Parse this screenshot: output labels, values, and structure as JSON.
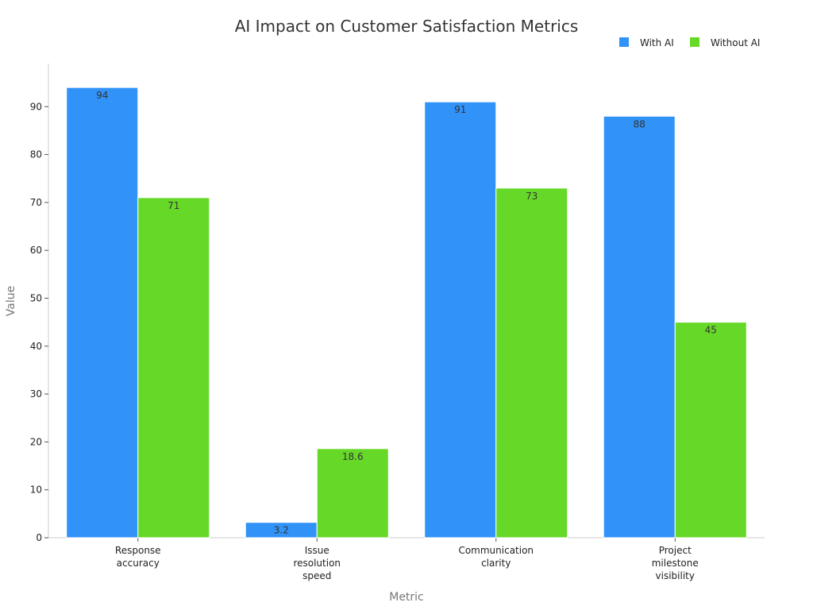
{
  "chart_data": {
    "type": "bar",
    "title": "AI Impact on Customer Satisfaction Metrics",
    "xlabel": "Metric",
    "ylabel": "Value",
    "ylim": [
      0,
      99
    ],
    "yticks": [
      0,
      10,
      20,
      30,
      40,
      50,
      60,
      70,
      80,
      90
    ],
    "grid": false,
    "legend_position": "top-right",
    "categories": [
      [
        "Response",
        "accuracy"
      ],
      [
        "Issue",
        "resolution",
        "speed"
      ],
      [
        "Communication",
        "clarity"
      ],
      [
        "Project",
        "milestone",
        "visibility"
      ]
    ],
    "series": [
      {
        "name": "With AI",
        "color": "#3192f7",
        "values": [
          94,
          3.2,
          91,
          88
        ]
      },
      {
        "name": "Without AI",
        "color": "#66d928",
        "values": [
          71,
          18.6,
          73,
          45
        ]
      }
    ]
  }
}
